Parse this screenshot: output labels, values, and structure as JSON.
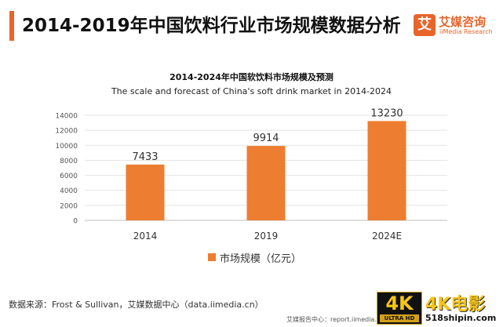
{
  "header": {
    "title": "2014-2019年中国饮料行业市场规模数据分析",
    "accent_color": "#e9642a"
  },
  "logo": {
    "mark": "艾",
    "name_cn": "艾媒咨询",
    "name_en": "iiMedia Research"
  },
  "chart_data": {
    "type": "bar",
    "title": "2014-2024年中国软饮料市场规模及预测",
    "subtitle": "The scale and forecast of China's soft drink market in 2014-2024",
    "categories": [
      "2014",
      "2019",
      "2024E"
    ],
    "series": [
      {
        "name": "市场规模（亿元）",
        "values": [
          7433,
          9914,
          13230
        ],
        "color": "#ed7d31"
      }
    ],
    "ylim": [
      0,
      14000
    ],
    "yticks": [
      0,
      2000,
      4000,
      6000,
      8000,
      10000,
      12000,
      14000
    ],
    "grid": true,
    "legend": "bottom-center"
  },
  "source": "数据来源：Frost & Sullivan，艾媒数据中心（data.iimedia.cn）",
  "footer": "艾媒报告中心：report.iimedia.cn",
  "watermark": {
    "badge": "4K",
    "badge_sub": "ULTRA HD",
    "text_cn": "4K电影",
    "url": "518shipin.com"
  }
}
